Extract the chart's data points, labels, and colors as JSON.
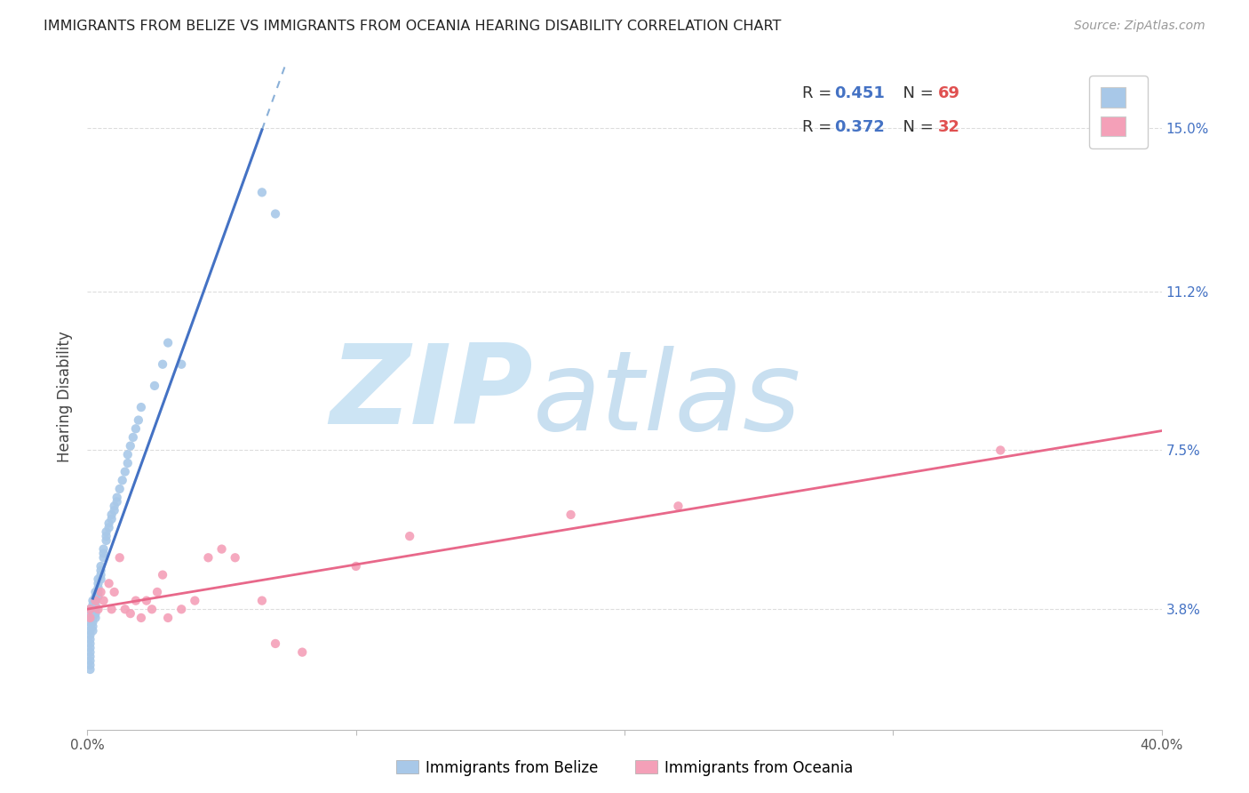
{
  "title": "IMMIGRANTS FROM BELIZE VS IMMIGRANTS FROM OCEANIA HEARING DISABILITY CORRELATION CHART",
  "source": "Source: ZipAtlas.com",
  "ylabel": "Hearing Disability",
  "ytick_labels": [
    "3.8%",
    "7.5%",
    "11.2%",
    "15.0%"
  ],
  "ytick_values": [
    0.038,
    0.075,
    0.112,
    0.15
  ],
  "xlim": [
    0.0,
    0.4
  ],
  "ylim": [
    0.01,
    0.165
  ],
  "belize_R": 0.451,
  "belize_N": 69,
  "oceania_R": 0.372,
  "oceania_N": 32,
  "belize_color": "#a8c8e8",
  "oceania_color": "#f4a0b8",
  "belize_line_color": "#4472c4",
  "oceania_line_color": "#e8688a",
  "legend_label_belize": "Immigrants from Belize",
  "legend_label_oceania": "Immigrants from Oceania",
  "belize_x": [
    0.001,
    0.001,
    0.001,
    0.001,
    0.001,
    0.001,
    0.001,
    0.001,
    0.001,
    0.001,
    0.001,
    0.001,
    0.001,
    0.001,
    0.001,
    0.002,
    0.002,
    0.002,
    0.002,
    0.002,
    0.002,
    0.002,
    0.002,
    0.003,
    0.003,
    0.003,
    0.003,
    0.003,
    0.003,
    0.003,
    0.004,
    0.004,
    0.004,
    0.004,
    0.004,
    0.005,
    0.005,
    0.005,
    0.005,
    0.006,
    0.006,
    0.006,
    0.007,
    0.007,
    0.007,
    0.008,
    0.008,
    0.009,
    0.009,
    0.01,
    0.01,
    0.011,
    0.011,
    0.012,
    0.013,
    0.014,
    0.015,
    0.015,
    0.016,
    0.017,
    0.018,
    0.019,
    0.02,
    0.025,
    0.028,
    0.03,
    0.035,
    0.065,
    0.07
  ],
  "belize_y": [
    0.038,
    0.037,
    0.036,
    0.035,
    0.034,
    0.033,
    0.032,
    0.031,
    0.03,
    0.029,
    0.028,
    0.027,
    0.026,
    0.025,
    0.024,
    0.04,
    0.039,
    0.038,
    0.037,
    0.036,
    0.035,
    0.034,
    0.033,
    0.042,
    0.041,
    0.04,
    0.039,
    0.038,
    0.037,
    0.036,
    0.045,
    0.044,
    0.043,
    0.042,
    0.041,
    0.048,
    0.047,
    0.046,
    0.045,
    0.052,
    0.051,
    0.05,
    0.056,
    0.055,
    0.054,
    0.058,
    0.057,
    0.06,
    0.059,
    0.062,
    0.061,
    0.064,
    0.063,
    0.066,
    0.068,
    0.07,
    0.072,
    0.074,
    0.076,
    0.078,
    0.08,
    0.082,
    0.085,
    0.09,
    0.095,
    0.1,
    0.095,
    0.135,
    0.13
  ],
  "oceania_x": [
    0.001,
    0.001,
    0.003,
    0.004,
    0.005,
    0.006,
    0.008,
    0.009,
    0.01,
    0.012,
    0.014,
    0.016,
    0.018,
    0.02,
    0.022,
    0.024,
    0.026,
    0.028,
    0.03,
    0.035,
    0.04,
    0.045,
    0.05,
    0.055,
    0.065,
    0.07,
    0.08,
    0.1,
    0.12,
    0.18,
    0.22,
    0.34
  ],
  "oceania_y": [
    0.038,
    0.036,
    0.04,
    0.038,
    0.042,
    0.04,
    0.044,
    0.038,
    0.042,
    0.05,
    0.038,
    0.037,
    0.04,
    0.036,
    0.04,
    0.038,
    0.042,
    0.046,
    0.036,
    0.038,
    0.04,
    0.05,
    0.052,
    0.05,
    0.04,
    0.03,
    0.028,
    0.048,
    0.055,
    0.06,
    0.062,
    0.075
  ],
  "background_color": "#ffffff",
  "grid_color": "#dddddd",
  "watermark_zip": "ZIP",
  "watermark_atlas": "atlas",
  "watermark_color": "#cce4f4"
}
